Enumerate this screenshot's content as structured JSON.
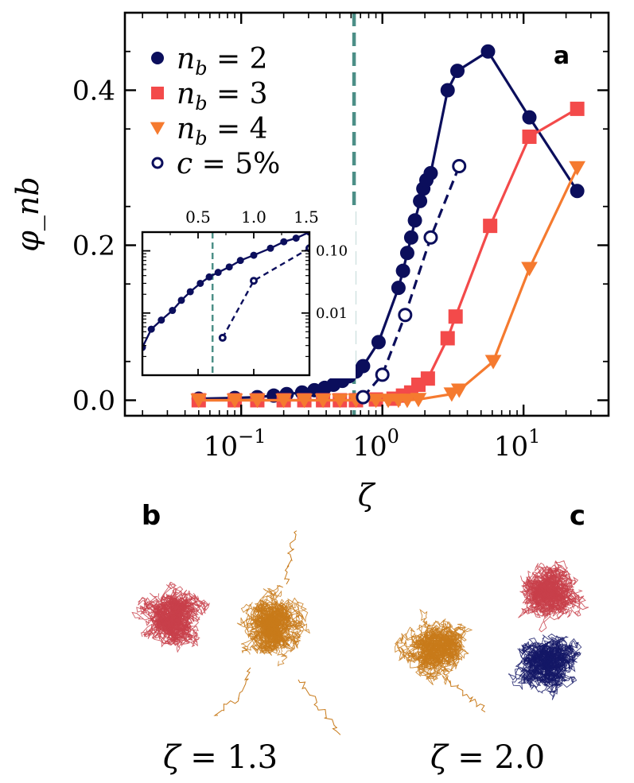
{
  "figure": {
    "panel_a_label": "a",
    "panel_b_label": "b",
    "panel_c_label": "c",
    "caption_b": "ζ = 1.3",
    "caption_c": "ζ = 2.0"
  },
  "chart_data": [
    {
      "type": "line",
      "panel": "a",
      "xlabel": "ζ",
      "ylabel": "φ_nb",
      "xscale": "log",
      "xlim": [
        0.015,
        40
      ],
      "ylim": [
        -0.02,
        0.5
      ],
      "xticks": [
        {
          "value": 0.1,
          "base": "10",
          "exp": "−1"
        },
        {
          "value": 1,
          "base": "10",
          "exp": "0"
        },
        {
          "value": 10,
          "base": "10",
          "exp": "1"
        }
      ],
      "yticks": [
        {
          "value": 0.0,
          "label": "0.0"
        },
        {
          "value": 0.2,
          "label": "0.2"
        },
        {
          "value": 0.4,
          "label": "0.4"
        }
      ],
      "vline": {
        "x": 0.63,
        "color": "#4c8f87",
        "style": "dashed"
      },
      "legend_position": "top-left",
      "series": [
        {
          "name": "n_b = 2",
          "legend_var": "n",
          "legend_sub": "b",
          "legend_rhs": " = 2",
          "color": "#0b0e5c",
          "marker": "circle-filled",
          "line": "solid",
          "x": [
            0.05,
            0.09,
            0.13,
            0.17,
            0.21,
            0.27,
            0.33,
            0.39,
            0.45,
            0.52,
            0.58,
            0.65,
            0.73,
            0.94,
            1.3,
            1.4,
            1.5,
            1.6,
            1.7,
            1.85,
            1.95,
            2.05,
            2.2,
            2.9,
            3.4,
            5.6,
            11,
            24
          ],
          "y": [
            0.002,
            0.003,
            0.004,
            0.006,
            0.008,
            0.01,
            0.013,
            0.016,
            0.02,
            0.025,
            0.031,
            0.037,
            0.044,
            0.075,
            0.145,
            0.167,
            0.19,
            0.21,
            0.232,
            0.257,
            0.273,
            0.284,
            0.293,
            0.4,
            0.425,
            0.45,
            0.365,
            0.27
          ]
        },
        {
          "name": "n_b = 3",
          "legend_var": "n",
          "legend_sub": "b",
          "legend_rhs": " = 3",
          "color": "#f34a4a",
          "marker": "square-filled",
          "line": "solid",
          "x": [
            0.05,
            0.09,
            0.13,
            0.2,
            0.28,
            0.38,
            0.5,
            0.65,
            0.9,
            1.2,
            1.4,
            1.6,
            1.8,
            2.1,
            2.9,
            3.3,
            5.8,
            11,
            24
          ],
          "y": [
            0.0,
            0.0,
            0.0,
            0.0,
            0.0,
            0.0,
            0.0,
            0.0,
            0.001,
            0.002,
            0.006,
            0.01,
            0.02,
            0.028,
            0.08,
            0.108,
            0.225,
            0.34,
            0.376
          ]
        },
        {
          "name": "n_b = 4",
          "legend_var": "n",
          "legend_sub": "b",
          "legend_rhs": " = 4",
          "color": "#f57a2f",
          "marker": "triangle-down-filled",
          "line": "solid",
          "x": [
            0.05,
            0.09,
            0.13,
            0.2,
            0.28,
            0.38,
            0.5,
            0.65,
            0.9,
            1.1,
            1.3,
            1.5,
            1.8,
            3.1,
            3.5,
            6.1,
            11,
            24
          ],
          "y": [
            0.0,
            0.0,
            0.0,
            0.0,
            0.0,
            0.0,
            0.0,
            0.0,
            0.0,
            0.0,
            0.0,
            0.0,
            0.001,
            0.008,
            0.013,
            0.05,
            0.17,
            0.3
          ]
        },
        {
          "name": "c = 5%",
          "legend_var": "c",
          "legend_sub": "",
          "legend_rhs": " = 5%",
          "color": "#0b0e5c",
          "marker": "circle-open",
          "line": "dashed",
          "x": [
            0.73,
            1.0,
            1.45,
            2.2,
            3.5
          ],
          "y": [
            0.004,
            0.033,
            0.11,
            0.21,
            0.302
          ]
        }
      ]
    },
    {
      "type": "line",
      "panel": "a-inset",
      "xlim": [
        0.0,
        1.5
      ],
      "ylim": [
        0.001,
        0.2
      ],
      "yscale": "log",
      "xticks": [
        {
          "value": 0.5,
          "label": "0.5"
        },
        {
          "value": 1.0,
          "label": "1.0"
        },
        {
          "value": 1.5,
          "label": "1.5"
        }
      ],
      "yticks": [
        {
          "value": 0.01,
          "label": "0.01"
        },
        {
          "value": 0.1,
          "label": "0.10"
        }
      ],
      "vline": {
        "x": 0.63,
        "color": "#4c8f87",
        "style": "dashed"
      },
      "series": [
        {
          "name": "n_b = 2",
          "color": "#0b0e5c",
          "marker": "circle-filled",
          "line": "solid",
          "x": [
            0.0,
            0.08,
            0.17,
            0.27,
            0.35,
            0.43,
            0.52,
            0.6,
            0.68,
            0.78,
            0.88,
            1.0,
            1.15,
            1.27,
            1.38,
            1.5
          ],
          "y": [
            0.0028,
            0.0055,
            0.0077,
            0.011,
            0.016,
            0.022,
            0.03,
            0.038,
            0.045,
            0.055,
            0.07,
            0.085,
            0.11,
            0.14,
            0.16,
            0.2
          ]
        },
        {
          "name": "c = 5%",
          "color": "#0b0e5c",
          "marker": "circle-open",
          "line": "dashed",
          "x": [
            0.72,
            1.0,
            1.5
          ],
          "y": [
            0.004,
            0.033,
            0.11
          ]
        }
      ]
    }
  ]
}
